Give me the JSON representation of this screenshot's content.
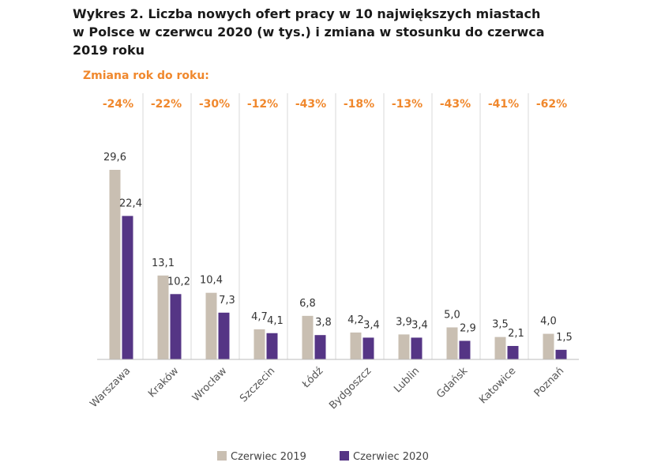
{
  "title": "Wykres 2. Liczba nowych ofert pracy w 10 największych miastach\nw Polsce w czerwcu 2020 (w tys.) i zmiana w stosunku do czerwca\n2019 roku",
  "colors": {
    "accent_orange": "#f0882d",
    "series_2019": "#c9bfb2",
    "series_2020": "#553585",
    "divider": "#d9d9d9",
    "axis": "#bbbbbb"
  },
  "chart_data": {
    "type": "bar",
    "title": "Wykres 2. Liczba nowych ofert pracy w 10 największych miastach w Polsce w czerwcu 2020 (w tys.) i zmiana w stosunku do czerwca 2019 roku",
    "change_heading": "Zmiana rok do roku:",
    "categories": [
      "Warszawa",
      "Kraków",
      "Wrocław",
      "Szczecin",
      "Łódź",
      "Bydgoszcz",
      "Lublin",
      "Gdańsk",
      "Katowice",
      "Poznań"
    ],
    "changes": [
      "-24%",
      "-22%",
      "-30%",
      "-12%",
      "-43%",
      "-18%",
      "-13%",
      "-43%",
      "-41%",
      "-62%"
    ],
    "series": [
      {
        "name": "Czerwiec 2019",
        "values": [
          29.6,
          13.1,
          10.4,
          4.7,
          6.8,
          4.2,
          3.9,
          5.0,
          3.5,
          4.0
        ],
        "labels": [
          "29,6",
          "13,1",
          "10,4",
          "4,7",
          "6,8",
          "4,2",
          "3,9",
          "5,0",
          "3,5",
          "4,0"
        ]
      },
      {
        "name": "Czerwiec 2020",
        "values": [
          22.4,
          10.2,
          7.3,
          4.1,
          3.8,
          3.4,
          3.4,
          2.9,
          2.1,
          1.5
        ],
        "labels": [
          "22,4",
          "10,2",
          "7,3",
          "4,1",
          "3,8",
          "3,4",
          "3,4",
          "2,9",
          "2,1",
          "1,5"
        ]
      }
    ],
    "ylim": [
      0,
      29.6
    ],
    "xlabel": "",
    "ylabel": "",
    "grid": false,
    "legend": "bottom-center"
  }
}
